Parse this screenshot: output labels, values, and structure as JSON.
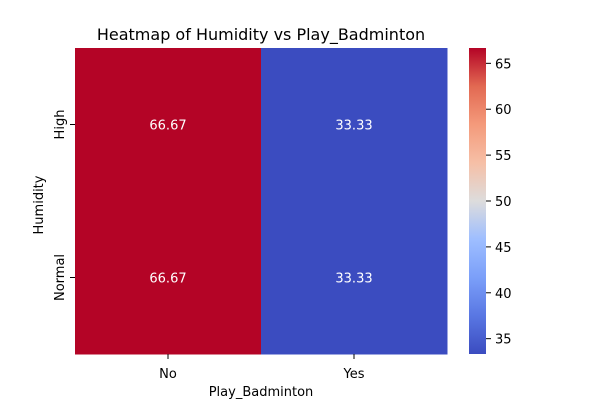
{
  "chart_data": {
    "type": "heatmap",
    "title": "Heatmap of Humidity vs Play_Badminton",
    "xlabel": "Play_Badminton",
    "ylabel": "Humidity",
    "x_categories": [
      "No",
      "Yes"
    ],
    "y_categories": [
      "High",
      "Normal"
    ],
    "values": [
      [
        66.67,
        33.33
      ],
      [
        66.67,
        33.33
      ]
    ],
    "cell_labels": [
      [
        "66.67",
        "33.33"
      ],
      [
        "66.67",
        "33.33"
      ]
    ],
    "colormap": "coolwarm",
    "color_range": [
      33.33,
      66.67
    ],
    "colorbar_ticks": [
      "35",
      "40",
      "45",
      "50",
      "55",
      "60",
      "65"
    ],
    "colors": {
      "low": "#3b4cc0",
      "high": "#b40426",
      "cell_text": "#ffffff"
    }
  }
}
